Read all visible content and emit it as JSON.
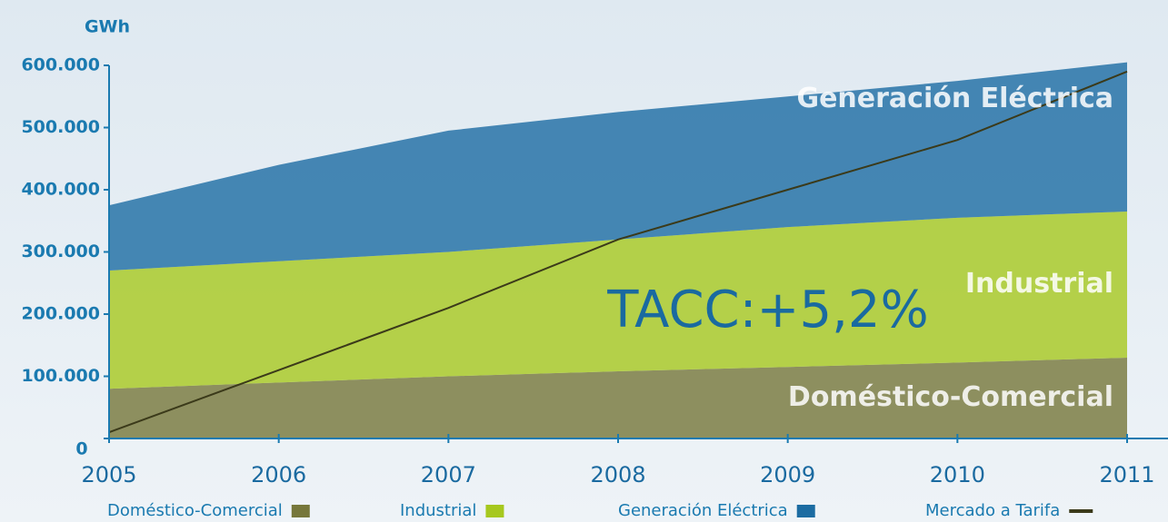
{
  "chart_data": {
    "type": "stacked_area",
    "y_label": "GWh",
    "annotation": "TACC:+5,2%",
    "x": [
      2005,
      2006,
      2007,
      2008,
      2009,
      2010,
      2011
    ],
    "xlim": [
      2005,
      2011
    ],
    "xticks": [
      2005,
      2006,
      2007,
      2008,
      2009,
      2010,
      2011
    ],
    "ylim": [
      0,
      600000
    ],
    "yticks": [
      0,
      {
        "value": 100000,
        "label": "100.000"
      },
      {
        "value": 200000,
        "label": "200.000"
      },
      {
        "value": 300000,
        "label": "300.000"
      },
      {
        "value": 400000,
        "label": "400.000"
      },
      {
        "value": 500000,
        "label": "500.000"
      },
      {
        "value": 600000,
        "label": "600.000"
      }
    ],
    "series": [
      {
        "name": "Doméstico-Comercial",
        "color": "#76773a",
        "values": [
          80000,
          90000,
          100000,
          108000,
          115000,
          122000,
          130000
        ]
      },
      {
        "name": "Industrial",
        "color": "#a6c81e",
        "values": [
          190000,
          195000,
          200000,
          212000,
          225000,
          233000,
          235000
        ]
      },
      {
        "name": "Generación Eléctrica",
        "color": "#1c6ca2",
        "values": [
          105000,
          155000,
          195000,
          205000,
          210000,
          220000,
          240000
        ]
      }
    ],
    "line_series": {
      "name": "Mercado a Tarifa",
      "color": "#3b3a1a",
      "values": [
        10000,
        110000,
        210000,
        320000,
        400000,
        480000,
        590000
      ]
    }
  }
}
